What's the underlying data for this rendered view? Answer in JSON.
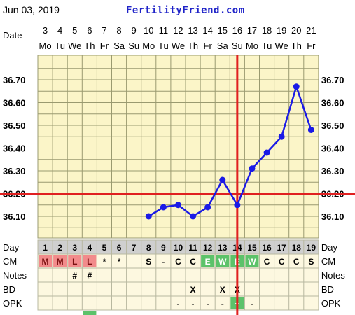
{
  "header": {
    "date": "Jun 03, 2019",
    "site": "FertilityFriend.com"
  },
  "chart_data": {
    "type": "line",
    "row_labels": {
      "date": "Date",
      "day": "Day",
      "cm": "CM",
      "notes": "Notes",
      "bd": "BD",
      "opk": "OPK"
    },
    "dates": [
      "3",
      "4",
      "5",
      "6",
      "7",
      "8",
      "9",
      "10",
      "11",
      "12",
      "13",
      "14",
      "15",
      "16",
      "17",
      "18",
      "19",
      "20",
      "21"
    ],
    "weekdays": [
      "Mo",
      "Tu",
      "We",
      "Th",
      "Fr",
      "Sa",
      "Su",
      "Mo",
      "Tu",
      "We",
      "Th",
      "Fr",
      "Sa",
      "Su",
      "Mo",
      "Tu",
      "We",
      "Th",
      "Fr"
    ],
    "cycle_days": [
      "1",
      "2",
      "3",
      "4",
      "5",
      "6",
      "7",
      "8",
      "9",
      "10",
      "11",
      "12",
      "13",
      "14",
      "15",
      "16",
      "17",
      "18",
      "19"
    ],
    "y_ticks": [
      "36.70",
      "36.60",
      "36.50",
      "36.40",
      "36.30",
      "36.20",
      "36.10"
    ],
    "ylim": [
      36.05,
      36.73
    ],
    "series": [
      {
        "values": [
          null,
          null,
          null,
          null,
          null,
          null,
          null,
          36.1,
          36.14,
          36.15,
          36.1,
          36.14,
          36.26,
          36.15,
          36.31,
          36.38,
          36.45,
          36.67,
          36.48
        ]
      }
    ],
    "coverline": 36.2,
    "ovulation_day_index": 13,
    "cm": [
      "M",
      "M",
      "L",
      "L",
      "*",
      "*",
      "",
      "S",
      "-",
      "C",
      "C",
      "E",
      "W",
      "E",
      "W",
      "C",
      "C",
      "C",
      "S"
    ],
    "notes": [
      "",
      "",
      "#",
      "#",
      "",
      "",
      "",
      "",
      "",
      "",
      "",
      "",
      "",
      "",
      "",
      "",
      "",
      "",
      ""
    ],
    "bd": [
      "",
      "",
      "",
      "",
      "",
      "",
      "",
      "",
      "",
      "",
      "X",
      "",
      "X",
      "X",
      "",
      "",
      "",
      "",
      ""
    ],
    "opk": [
      "",
      "",
      "",
      "",
      "",
      "",
      "",
      "",
      "",
      "-",
      "-",
      "-",
      "-",
      "+",
      "-",
      "",
      "",
      "",
      ""
    ],
    "colors": {
      "temp_line": "#1a1ae6",
      "coverline": "#e02020",
      "grid_bg": "#fbf5c8",
      "grid_line": "#9a9a70",
      "day_header_bg": "#cfcfcf",
      "menses": "#f28b8b",
      "fertile_cm": "#5cc26a",
      "opk_positive": "#5cc26a"
    }
  }
}
